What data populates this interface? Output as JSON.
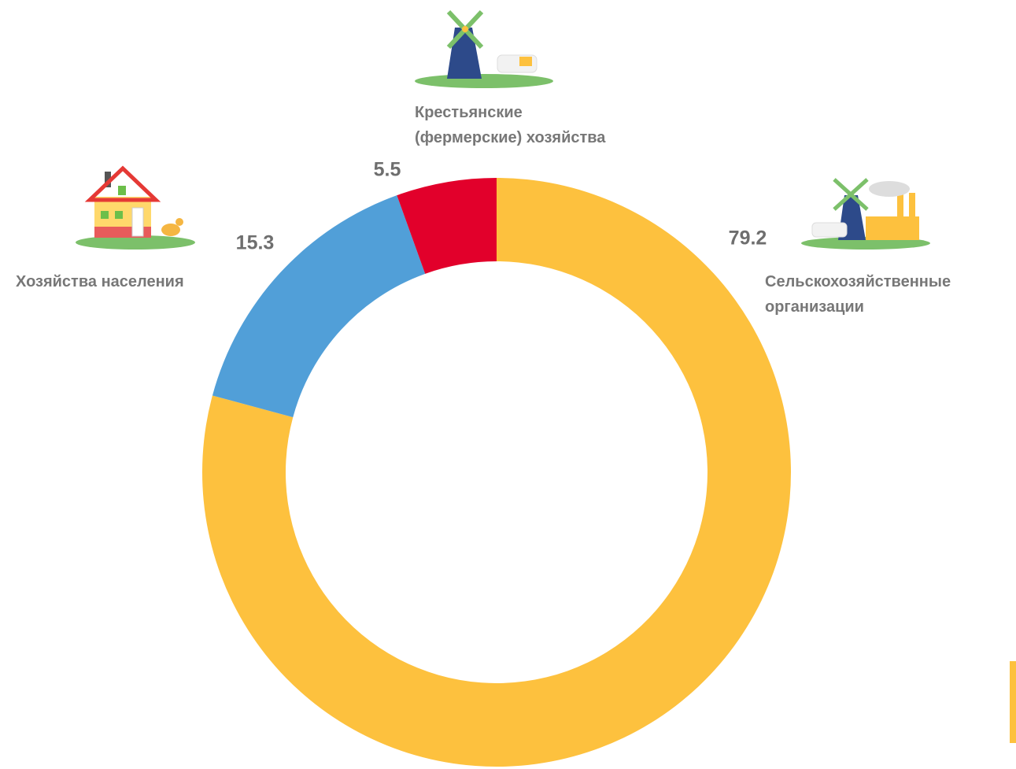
{
  "chart_data": {
    "type": "donut",
    "categories": [
      "Сельскохозяйственные\nорганизации",
      "Хозяйства населения",
      "Крестьянские\n(фермерские) хозяйства"
    ],
    "values": [
      79.2,
      15.3,
      5.5
    ],
    "colors": [
      "#fdc13e",
      "#519fd8",
      "#e2002b"
    ]
  }
}
